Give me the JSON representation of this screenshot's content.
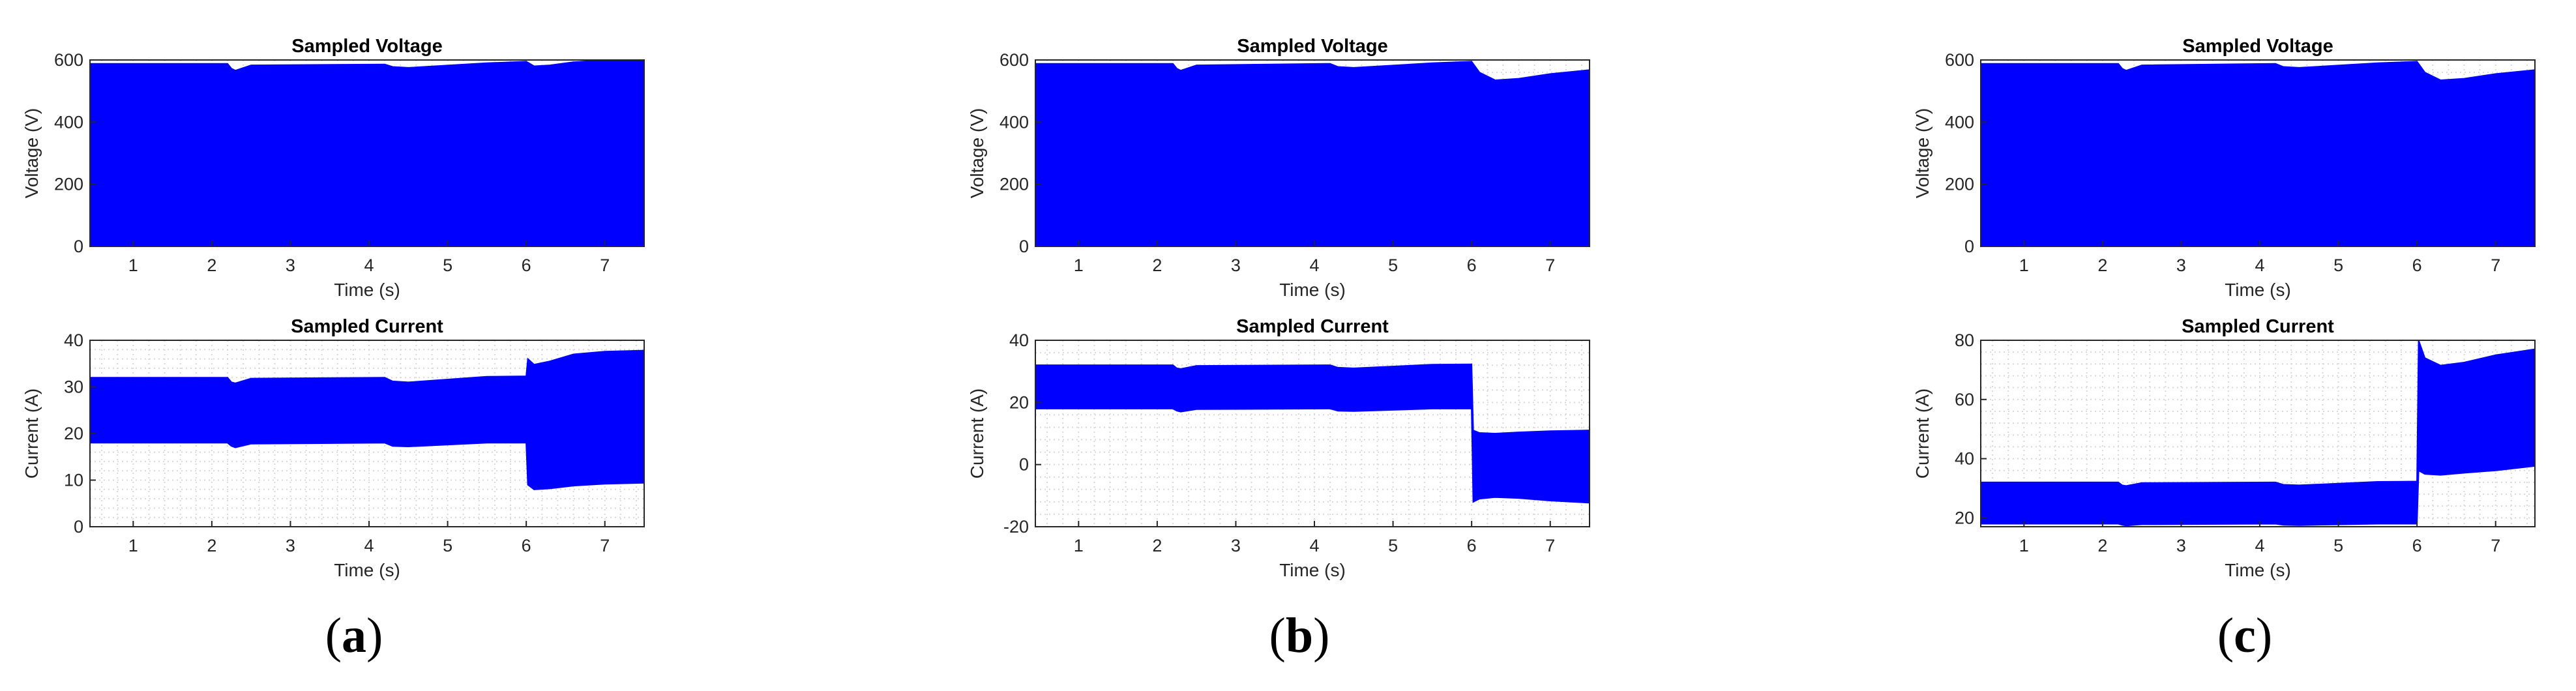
{
  "colors": {
    "waveform": "#0000ff",
    "grid": "#d9d9d9",
    "axes": "#262626",
    "background": "#ffffff"
  },
  "panels": [
    {
      "label": "a",
      "chart_data": [
        {
          "type": "area",
          "title": "Sampled Voltage",
          "xlabel": "Time (s)",
          "ylabel": "Voltage (V)",
          "xlim": [
            0.45,
            7.5
          ],
          "ylim": [
            0,
            600
          ],
          "xticks": [
            1,
            2,
            3,
            4,
            5,
            6,
            7
          ],
          "yticks": [
            0,
            200,
            400,
            600
          ],
          "grid": "minor-dotted",
          "series": [
            {
              "x": [
                0.45,
                2.2,
                2.25,
                2.3,
                2.5,
                4.2,
                4.3,
                4.5,
                5.5,
                6.0,
                6.1,
                6.3,
                6.6,
                7.0,
                7.5
              ],
              "upper": [
                588,
                588,
                572,
                566,
                583,
                586,
                578,
                575,
                590,
                595,
                580,
                583,
                593,
                600,
                600
              ],
              "lower": [
                0,
                0,
                0,
                0,
                0,
                0,
                0,
                0,
                0,
                0,
                0,
                0,
                0,
                0,
                0
              ]
            }
          ]
        },
        {
          "type": "area",
          "title": "Sampled Current",
          "xlabel": "Time (s)",
          "ylabel": "Current (A)",
          "xlim": [
            0.45,
            7.5
          ],
          "ylim": [
            0,
            40
          ],
          "xticks": [
            1,
            2,
            3,
            4,
            5,
            6,
            7
          ],
          "yticks": [
            0,
            10,
            20,
            30,
            40
          ],
          "grid": "minor-dotted",
          "series": [
            {
              "x": [
                0.45,
                2.2,
                2.25,
                2.3,
                2.5,
                4.2,
                4.3,
                4.5,
                5.5,
                6.0,
                6.02,
                6.1,
                6.3,
                6.6,
                7.0,
                7.5
              ],
              "upper": [
                32,
                32,
                31,
                30.8,
                31.8,
                32,
                31.2,
                31,
                32.2,
                32.3,
                36,
                34.8,
                35.5,
                37,
                37.6,
                37.8
              ],
              "lower": [
                18,
                18,
                17.3,
                17,
                17.8,
                18,
                17.3,
                17.2,
                18,
                18,
                9,
                8,
                8.2,
                8.8,
                9.2,
                9.4
              ]
            }
          ]
        }
      ]
    },
    {
      "label": "b",
      "chart_data": [
        {
          "type": "area",
          "title": "Sampled Voltage",
          "xlabel": "Time (s)",
          "ylabel": "Voltage (V)",
          "xlim": [
            0.45,
            7.5
          ],
          "ylim": [
            0,
            600
          ],
          "xticks": [
            1,
            2,
            3,
            4,
            5,
            6,
            7
          ],
          "yticks": [
            0,
            200,
            400,
            600
          ],
          "grid": "minor-dotted",
          "series": [
            {
              "x": [
                0.45,
                2.2,
                2.25,
                2.3,
                2.5,
                4.2,
                4.3,
                4.5,
                5.5,
                6.0,
                6.1,
                6.3,
                6.6,
                7.0,
                7.5
              ],
              "upper": [
                588,
                588,
                572,
                566,
                583,
                588,
                578,
                575,
                590,
                595,
                560,
                535,
                540,
                555,
                568
              ],
              "lower": [
                0,
                0,
                0,
                0,
                0,
                0,
                0,
                0,
                0,
                0,
                0,
                0,
                0,
                0,
                0
              ]
            }
          ]
        },
        {
          "type": "area",
          "title": "Sampled Current",
          "xlabel": "Time (s)",
          "ylabel": "Current (A)",
          "xlim": [
            0.45,
            7.5
          ],
          "ylim": [
            -20,
            40
          ],
          "xticks": [
            1,
            2,
            3,
            4,
            5,
            6,
            7
          ],
          "yticks": [
            -20,
            0,
            20,
            40
          ],
          "grid": "minor-dotted",
          "series": [
            {
              "x": [
                0.45,
                2.2,
                2.25,
                2.3,
                2.5,
                4.2,
                4.3,
                4.5,
                5.5,
                6.0,
                6.02,
                6.1,
                6.3,
                6.6,
                7.0,
                7.5
              ],
              "upper": [
                32,
                32,
                31,
                30.8,
                31.8,
                32,
                31.2,
                31,
                32.2,
                32.3,
                11,
                10.2,
                10,
                10.4,
                10.8,
                11
              ],
              "lower": [
                18,
                18,
                17.3,
                17,
                17.8,
                18,
                17.3,
                17.2,
                18,
                18,
                -12,
                -11,
                -10.5,
                -10.8,
                -11.6,
                -12.3
              ]
            }
          ]
        }
      ]
    },
    {
      "label": "c",
      "chart_data": [
        {
          "type": "area",
          "title": "Sampled Voltage",
          "xlabel": "Time (s)",
          "ylabel": "Voltage (V)",
          "xlim": [
            0.45,
            7.5
          ],
          "ylim": [
            0,
            600
          ],
          "xticks": [
            1,
            2,
            3,
            4,
            5,
            6,
            7
          ],
          "yticks": [
            0,
            200,
            400,
            600
          ],
          "grid": "minor-dotted",
          "series": [
            {
              "x": [
                0.45,
                2.2,
                2.25,
                2.3,
                2.5,
                4.2,
                4.3,
                4.5,
                5.5,
                6.0,
                6.1,
                6.3,
                6.6,
                7.0,
                7.5
              ],
              "upper": [
                588,
                588,
                572,
                566,
                583,
                588,
                578,
                575,
                590,
                595,
                560,
                535,
                540,
                555,
                568
              ],
              "lower": [
                0,
                0,
                0,
                0,
                0,
                0,
                0,
                0,
                0,
                0,
                0,
                0,
                0,
                0,
                0
              ]
            }
          ]
        },
        {
          "type": "area",
          "title": "Sampled Current",
          "xlabel": "Time (s)",
          "ylabel": "Current (A)",
          "xlim": [
            0.45,
            7.5
          ],
          "ylim": [
            17,
            80
          ],
          "xticks": [
            1,
            2,
            3,
            4,
            5,
            6,
            7
          ],
          "yticks": [
            20,
            40,
            60,
            80
          ],
          "grid": "minor-dotted",
          "series": [
            {
              "x": [
                0.45,
                2.2,
                2.25,
                2.3,
                2.5,
                4.2,
                4.3,
                4.5,
                5.5,
                6.0,
                6.02,
                6.1,
                6.3,
                6.6,
                7.0,
                7.5
              ],
              "upper": [
                32,
                32,
                31,
                30.8,
                31.8,
                32,
                31.2,
                31,
                32.2,
                32.3,
                80,
                74,
                71.5,
                72.5,
                75,
                77
              ],
              "lower": [
                18,
                18,
                17.6,
                17.4,
                17.8,
                18,
                17.6,
                17.5,
                18,
                18,
                36,
                34.8,
                34.5,
                35.2,
                36,
                37.5
              ]
            }
          ]
        }
      ]
    }
  ]
}
